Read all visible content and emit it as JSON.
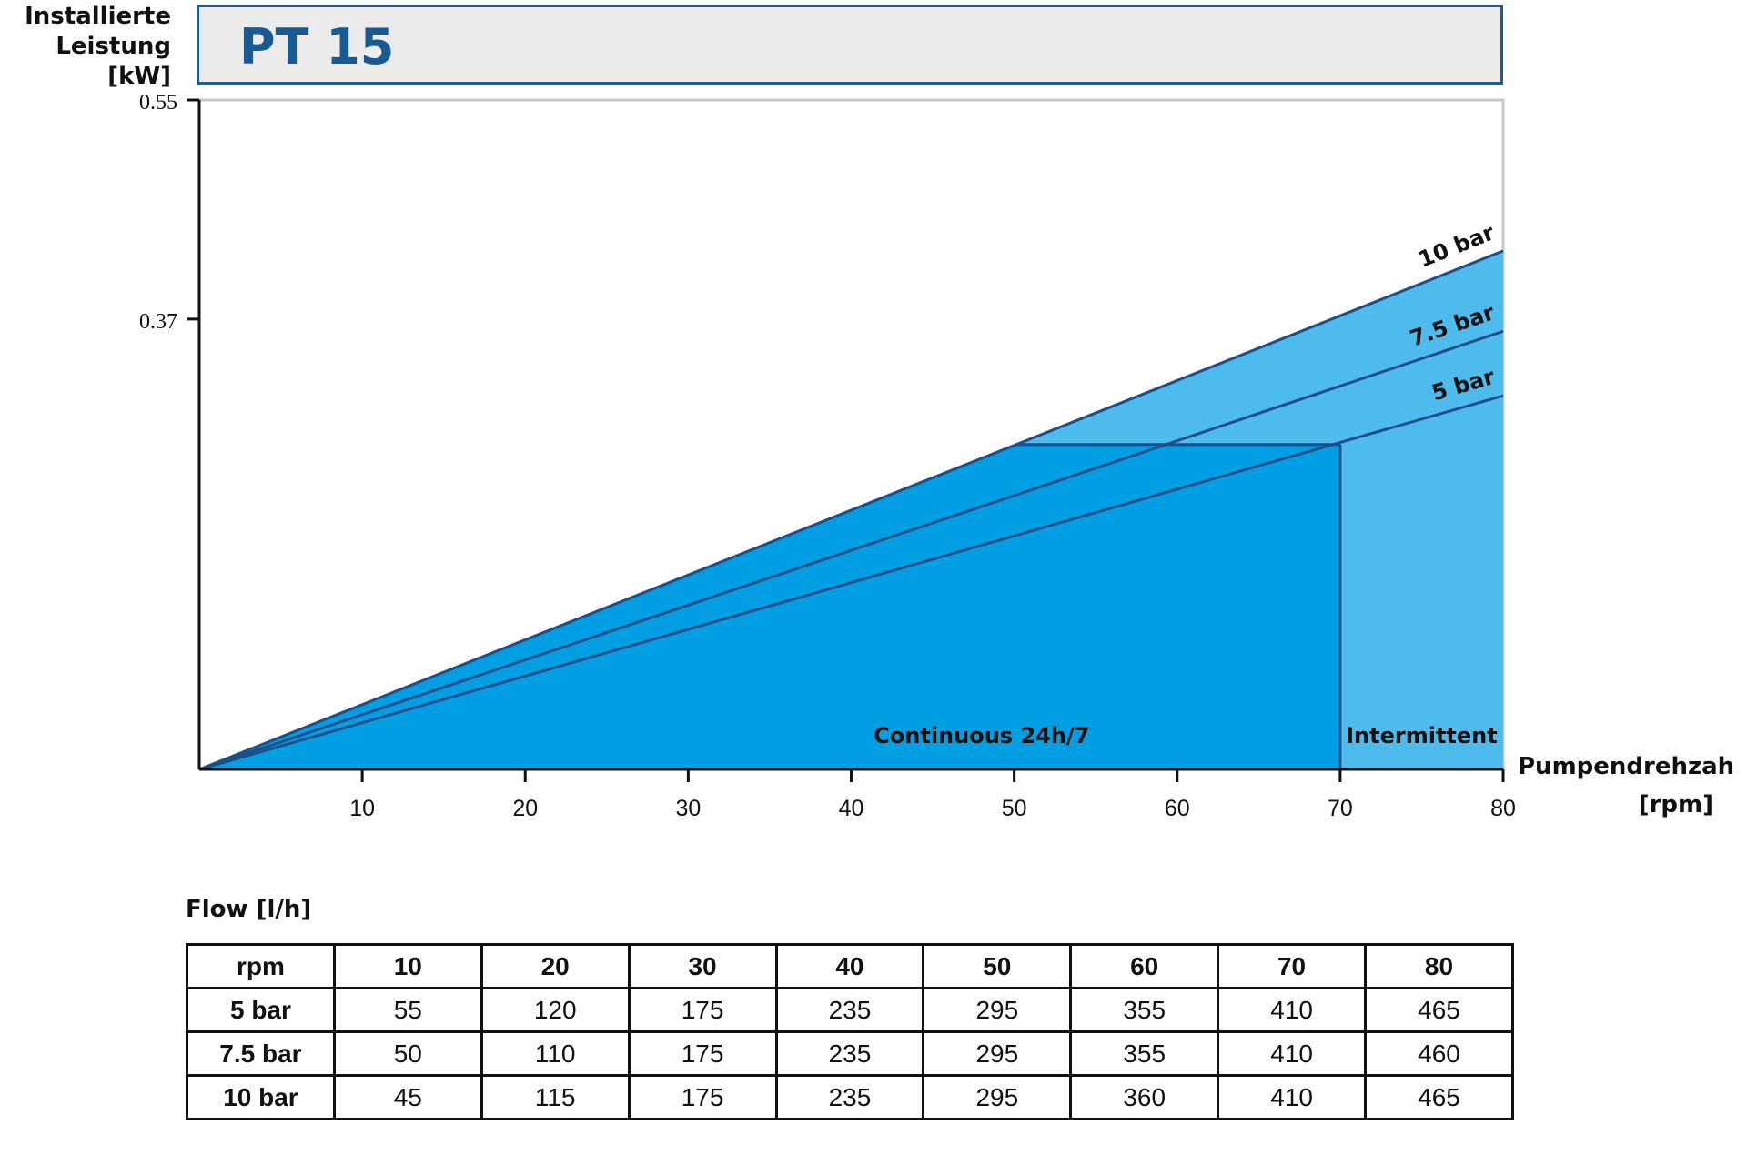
{
  "chart_title": "PT 15",
  "y_axis_label": [
    "Installierte",
    "Leistung",
    "[kW]"
  ],
  "x_axis_label": [
    "Pumpendrehzah",
    "[rpm]"
  ],
  "chart_data": {
    "type": "area",
    "title": "PT 15",
    "ylabel": "Installierte Leistung [kW]",
    "xlabel": "Pumpendrehzah [rpm]",
    "xlim": [
      0,
      80
    ],
    "ylim": [
      0,
      0.55
    ],
    "x_ticks": [
      10,
      20,
      30,
      40,
      50,
      60,
      70,
      80
    ],
    "y_ticks": [
      0.37,
      0.55
    ],
    "x": [
      0,
      80
    ],
    "series": [
      {
        "name": "10 bar",
        "values": [
          0,
          0.426
        ]
      },
      {
        "name": "7.5 bar",
        "values": [
          0,
          0.36
        ]
      },
      {
        "name": "5 bar",
        "values": [
          0,
          0.307
        ]
      }
    ],
    "regions": [
      {
        "label": "Continuous 24h/7",
        "x_range": [
          0,
          70
        ],
        "max_power_kw": 0.267
      },
      {
        "label": "Intermittent",
        "x_range": [
          70,
          80
        ]
      }
    ],
    "colors": {
      "continuous": "#009fe3",
      "intermittent": "#4dbbeb",
      "line": "#1c4f8a",
      "title": "#1a5a93"
    }
  },
  "flow_table": {
    "caption": "Flow [l/h]",
    "header": [
      "rpm",
      "10",
      "20",
      "30",
      "40",
      "50",
      "60",
      "70",
      "80"
    ],
    "rows": [
      [
        "5 bar",
        "55",
        "120",
        "175",
        "235",
        "295",
        "355",
        "410",
        "465"
      ],
      [
        "7.5 bar",
        "50",
        "110",
        "175",
        "235",
        "295",
        "355",
        "410",
        "460"
      ],
      [
        "10 bar",
        "45",
        "115",
        "175",
        "235",
        "295",
        "360",
        "410",
        "465"
      ]
    ]
  }
}
